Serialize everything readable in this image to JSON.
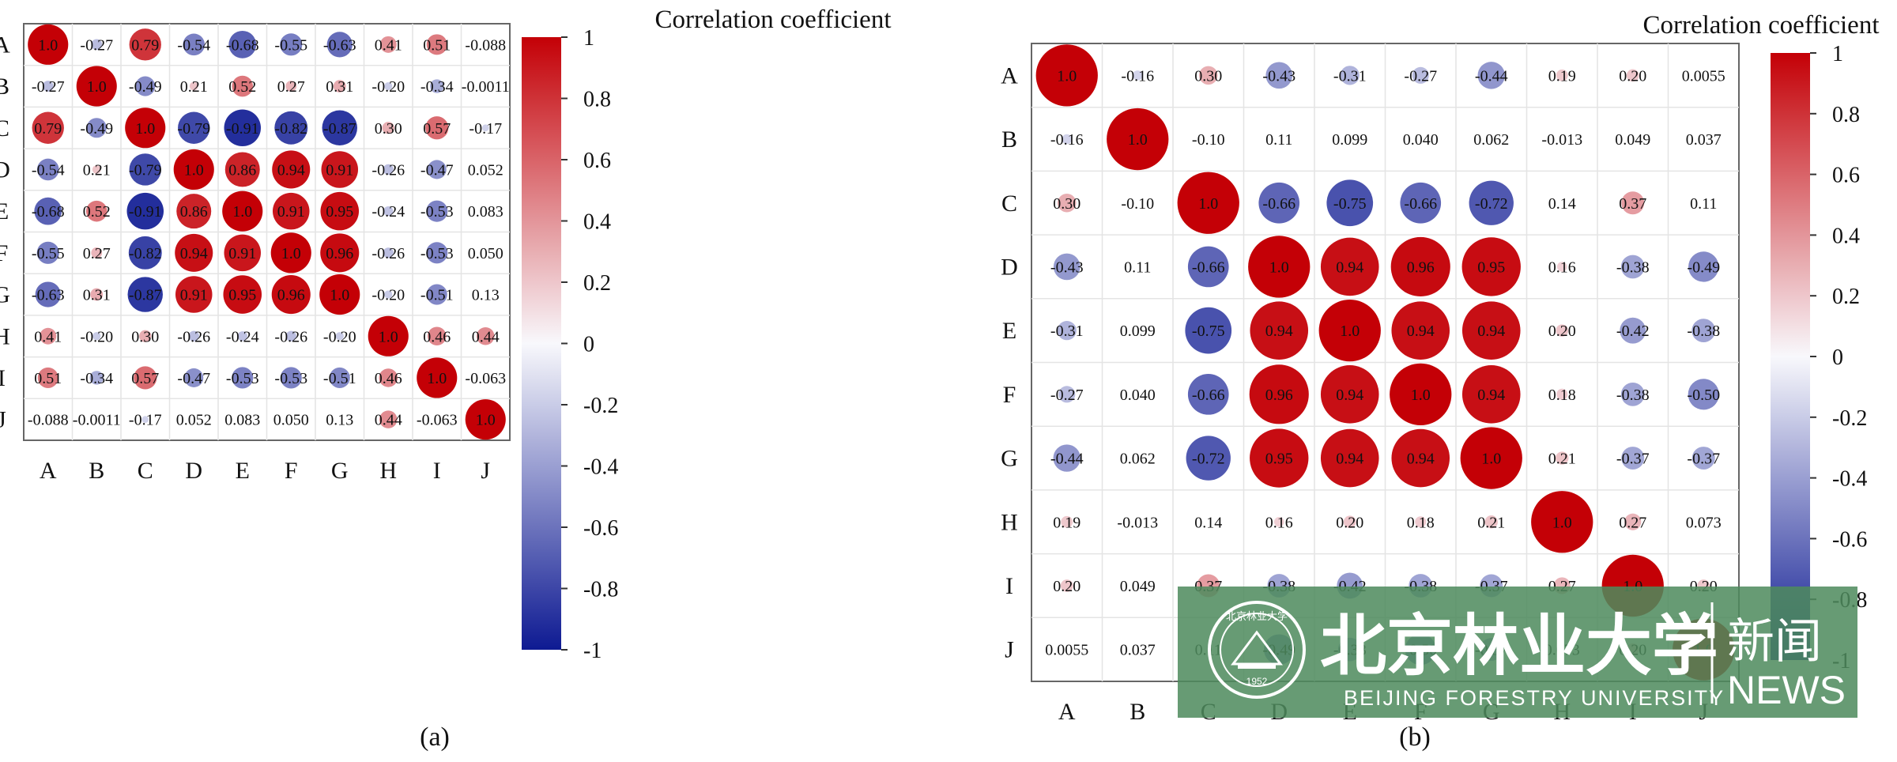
{
  "chart_data": [
    {
      "type": "heatmap",
      "panel_label": "(a)",
      "legend_title": "Correlation coefficient",
      "variables": [
        "A",
        "B",
        "C",
        "D",
        "E",
        "F",
        "G",
        "H",
        "I",
        "J"
      ],
      "matrix": [
        [
          "1.0",
          "-0.27",
          "0.79",
          "-0.54",
          "-0.68",
          "-0.55",
          "-0.63",
          "0.41",
          "0.51",
          "-0.088"
        ],
        [
          "-0.27",
          "1.0",
          "-0.49",
          "0.21",
          "0.52",
          "0.27",
          "0.31",
          "-0.20",
          "-0.34",
          "-0.0011"
        ],
        [
          "0.79",
          "-0.49",
          "1.0",
          "-0.79",
          "-0.91",
          "-0.82",
          "-0.87",
          "0.30",
          "0.57",
          "-0.17"
        ],
        [
          "-0.54",
          "0.21",
          "-0.79",
          "1.0",
          "0.86",
          "0.94",
          "0.91",
          "-0.26",
          "-0.47",
          "0.052"
        ],
        [
          "-0.68",
          "0.52",
          "-0.91",
          "0.86",
          "1.0",
          "0.91",
          "0.95",
          "-0.24",
          "-0.53",
          "0.083"
        ],
        [
          "-0.55",
          "0.27",
          "-0.82",
          "0.94",
          "0.91",
          "1.0",
          "0.96",
          "-0.26",
          "-0.53",
          "0.050"
        ],
        [
          "-0.63",
          "0.31",
          "-0.87",
          "0.91",
          "0.95",
          "0.96",
          "1.0",
          "-0.20",
          "-0.51",
          "0.13"
        ],
        [
          "0.41",
          "-0.20",
          "0.30",
          "-0.26",
          "-0.24",
          "-0.26",
          "-0.20",
          "1.0",
          "0.46",
          "0.44"
        ],
        [
          "0.51",
          "-0.34",
          "0.57",
          "-0.47",
          "-0.53",
          "-0.53",
          "-0.51",
          "0.46",
          "1.0",
          "-0.063"
        ],
        [
          "-0.088",
          "-0.0011",
          "-0.17",
          "0.052",
          "0.083",
          "0.050",
          "0.13",
          "0.44",
          "-0.063",
          "1.0"
        ]
      ],
      "colorbar": {
        "range": [
          -1,
          1
        ],
        "ticks": [
          "1",
          "0.8",
          "0.6",
          "0.4",
          "0.2",
          "0",
          "-0.2",
          "-0.4",
          "-0.6",
          "-0.8",
          "-1"
        ]
      }
    },
    {
      "type": "heatmap",
      "panel_label": "(b)",
      "legend_title": "Correlation coefficient",
      "variables": [
        "A",
        "B",
        "C",
        "D",
        "E",
        "F",
        "G",
        "H",
        "I",
        "J"
      ],
      "matrix": [
        [
          "1.0",
          "-0.16",
          "0.30",
          "-0.43",
          "-0.31",
          "-0.27",
          "-0.44",
          "0.19",
          "0.20",
          "0.0055"
        ],
        [
          "-0.16",
          "1.0",
          "-0.10",
          "0.11",
          "0.099",
          "0.040",
          "0.062",
          "-0.013",
          "0.049",
          "0.037"
        ],
        [
          "0.30",
          "-0.10",
          "1.0",
          "-0.66",
          "-0.75",
          "-0.66",
          "-0.72",
          "0.14",
          "0.37",
          "0.11"
        ],
        [
          "-0.43",
          "0.11",
          "-0.66",
          "1.0",
          "0.94",
          "0.96",
          "0.95",
          "0.16",
          "-0.38",
          "-0.49"
        ],
        [
          "-0.31",
          "0.099",
          "-0.75",
          "0.94",
          "1.0",
          "0.94",
          "0.94",
          "0.20",
          "-0.42",
          "-0.38"
        ],
        [
          "-0.27",
          "0.040",
          "-0.66",
          "0.96",
          "0.94",
          "1.0",
          "0.94",
          "0.18",
          "-0.38",
          "-0.50"
        ],
        [
          "-0.44",
          "0.062",
          "-0.72",
          "0.95",
          "0.94",
          "0.94",
          "1.0",
          "0.21",
          "-0.37",
          "-0.37"
        ],
        [
          "0.19",
          "-0.013",
          "0.14",
          "0.16",
          "0.20",
          "0.18",
          "0.21",
          "1.0",
          "0.27",
          "0.073"
        ],
        [
          "0.20",
          "0.049",
          "0.37",
          "-0.38",
          "-0.42",
          "-0.38",
          "-0.37",
          "0.27",
          "1.0",
          "0.20"
        ],
        [
          "0.0055",
          "0.037",
          "0.11",
          "-0.49",
          "-0.38",
          "-0.50",
          "-0.37",
          "0.073",
          "0.20",
          "1.0"
        ]
      ],
      "colorbar": {
        "range": [
          -1,
          1
        ],
        "ticks": [
          "1",
          "0.8",
          "0.6",
          "0.4",
          "0.2",
          "0",
          "-0.2",
          "-0.4",
          "-0.6",
          "-0.8",
          "-1"
        ]
      }
    }
  ],
  "watermark": {
    "seal_text": "北京林业大学",
    "seal_year": "1952",
    "seal_ring_text": "BEIJING FORESTRY UNIVERSITY",
    "title_cn": "北京林业大学",
    "subtitle_en": "BEIJING FORESTRY UNIVERSITY",
    "badge_cn": "新闻",
    "badge_en": "NEWS",
    "bg_color": "#4e8a5d"
  }
}
